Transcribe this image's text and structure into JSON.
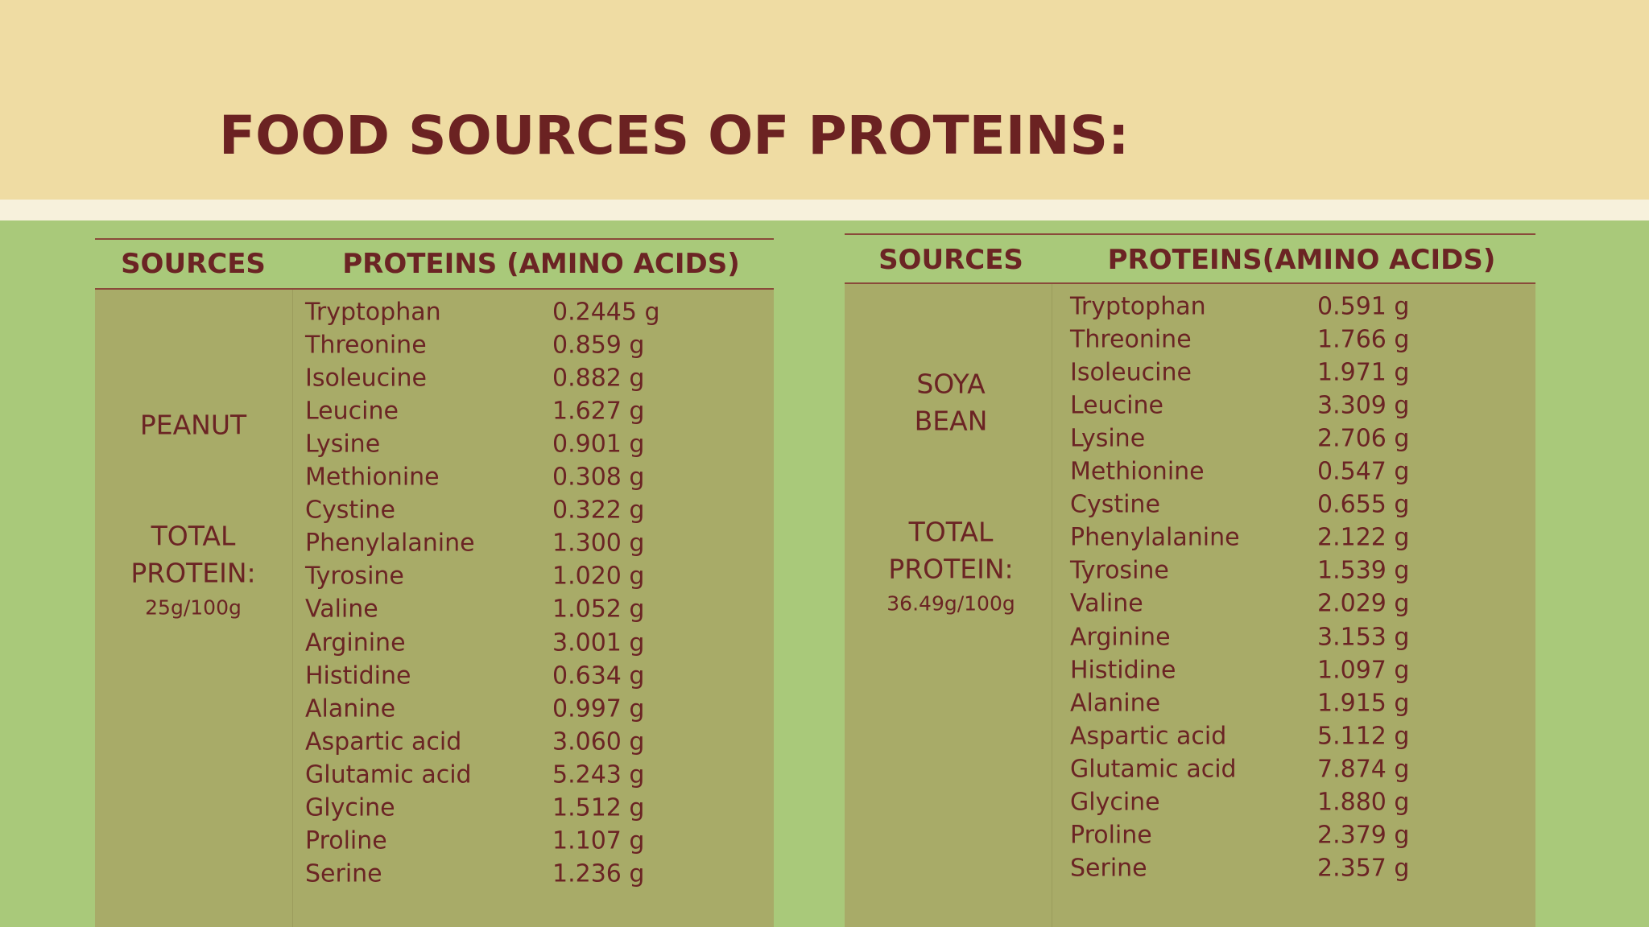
{
  "title": "FOOD SOURCES OF PROTEINS:",
  "tables": [
    {
      "headers": [
        "SOURCES",
        "PROTEINS (AMINO ACIDS)"
      ],
      "source_lines": [
        "PEANUT"
      ],
      "total_label_lines": [
        "TOTAL",
        "PROTEIN:"
      ],
      "total_value": "25g/100g",
      "rows": [
        [
          "Tryptophan",
          "0.2445 g"
        ],
        [
          "Threonine",
          "0.859 g"
        ],
        [
          "Isoleucine",
          "0.882 g"
        ],
        [
          "Leucine",
          "1.627 g"
        ],
        [
          "Lysine",
          "0.901 g"
        ],
        [
          "Methionine",
          "0.308 g"
        ],
        [
          "Cystine",
          "0.322 g"
        ],
        [
          "Phenylalanine",
          "1.300 g"
        ],
        [
          "Tyrosine",
          "1.020 g"
        ],
        [
          "Valine",
          "1.052 g"
        ],
        [
          "Arginine",
          "3.001 g"
        ],
        [
          "Histidine",
          "0.634 g"
        ],
        [
          "Alanine",
          "0.997 g"
        ],
        [
          "Aspartic acid",
          "3.060 g"
        ],
        [
          "Glutamic acid",
          "5.243 g"
        ],
        [
          "Glycine",
          "1.512 g"
        ],
        [
          "Proline",
          "1.107 g"
        ],
        [
          "Serine",
          "1.236 g"
        ]
      ]
    },
    {
      "headers": [
        "SOURCES",
        "PROTEINS(AMINO ACIDS)"
      ],
      "source_lines": [
        "SOYA",
        "BEAN"
      ],
      "total_label_lines": [
        "TOTAL",
        "PROTEIN:"
      ],
      "total_value": "36.49g/100g",
      "rows": [
        [
          "Tryptophan",
          "0.591 g"
        ],
        [
          "Threonine",
          "1.766 g"
        ],
        [
          "Isoleucine",
          "1.971 g"
        ],
        [
          "Leucine",
          "3.309 g"
        ],
        [
          "Lysine",
          "2.706 g"
        ],
        [
          "Methionine",
          "0.547 g"
        ],
        [
          "Cystine",
          "0.655 g"
        ],
        [
          "Phenylalanine",
          "2.122 g"
        ],
        [
          "Tyrosine",
          "1.539 g"
        ],
        [
          "Valine",
          "2.029 g"
        ],
        [
          "Arginine",
          "3.153 g"
        ],
        [
          "Histidine",
          "1.097 g"
        ],
        [
          "Alanine",
          "1.915 g"
        ],
        [
          "Aspartic acid",
          "5.112 g"
        ],
        [
          "Glutamic acid",
          "7.874 g"
        ],
        [
          "Glycine",
          "1.880 g"
        ],
        [
          "Proline",
          "2.379 g"
        ],
        [
          "Serine",
          "2.357 g"
        ]
      ]
    }
  ]
}
